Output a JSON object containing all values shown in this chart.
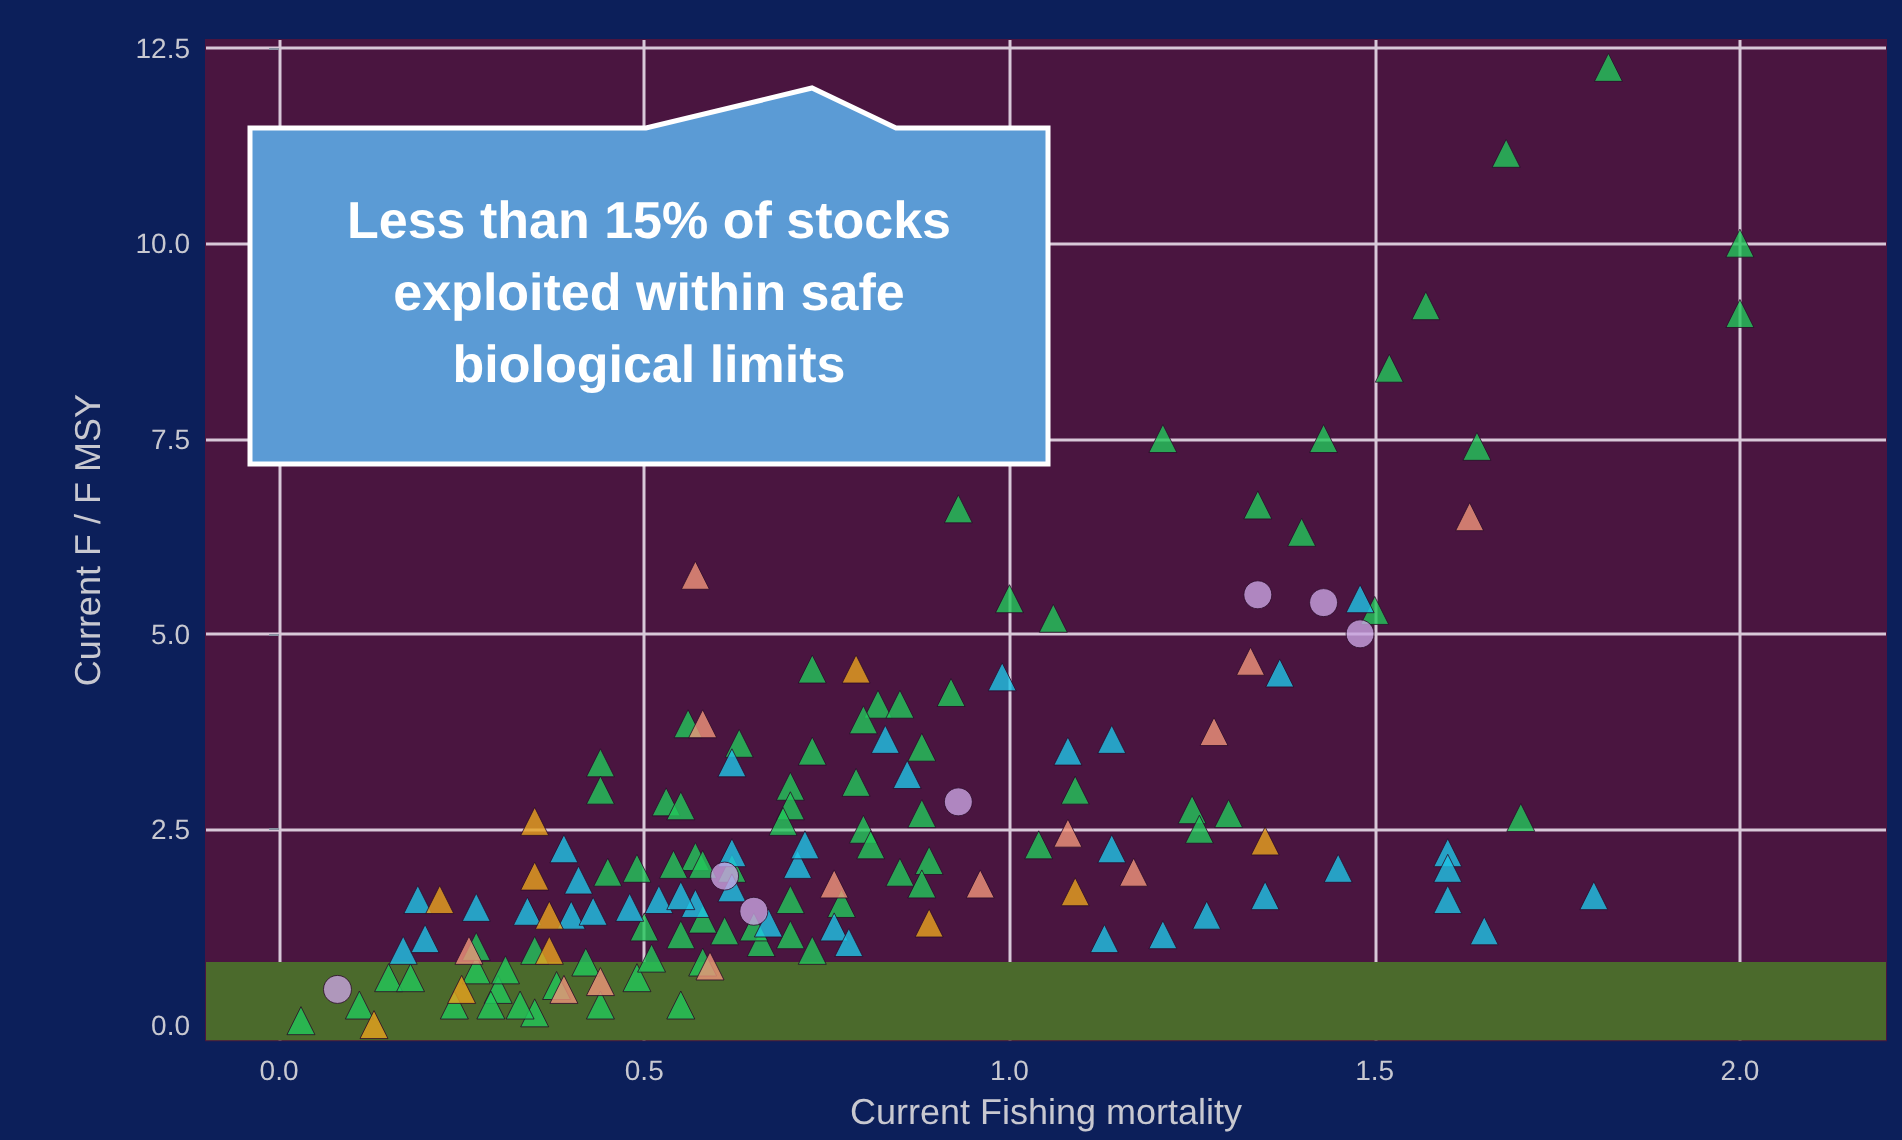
{
  "chart_data": {
    "type": "scatter",
    "xlabel": "Current Fishing mortality",
    "ylabel": "Current F / F MSY",
    "annotations": [
      "Less than 15% of stocks exploited within safe biological limits"
    ],
    "xlim": [
      -0.1,
      2.2
    ],
    "ylim": [
      -0.2,
      12.6
    ],
    "xticks": [
      {
        "value": 0,
        "label": "0.0"
      },
      {
        "value": 0.5,
        "label": "0.5"
      },
      {
        "value": 1,
        "label": "1.0"
      },
      {
        "value": 1.5,
        "label": "1.5"
      },
      {
        "value": 2,
        "label": "2.0"
      }
    ],
    "yticks": [
      {
        "value": 0,
        "label": "0.0"
      },
      {
        "value": 2.5,
        "label": "2.5"
      },
      {
        "value": 5,
        "label": "5.0"
      },
      {
        "value": 7.5,
        "label": "7.5"
      },
      {
        "value": 10,
        "label": "10.0"
      },
      {
        "value": 12.5,
        "label": "12.5"
      }
    ],
    "grid": true,
    "bands": [
      {
        "axis": "y",
        "from": -0.2,
        "to": 0.8,
        "color": "#4b6a2c"
      }
    ],
    "series": [
      {
        "color": "#22c85a",
        "marker": "triangle",
        "x": [
          1.82,
          1.68,
          2.0,
          2.0,
          1.57,
          1.52,
          1.21,
          1.43,
          1.64,
          1.34,
          1.4,
          0.93,
          1.0,
          1.06,
          1.5,
          0.73,
          0.82,
          0.85,
          0.92,
          0.56,
          0.63,
          0.73,
          0.8,
          0.88,
          0.44,
          0.44,
          0.53,
          0.55,
          0.7,
          0.7,
          0.79,
          0.88,
          0.8,
          0.81,
          0.69,
          0.89,
          1.09,
          1.04,
          1.25,
          1.3,
          1.26,
          1.7,
          0.85,
          0.88,
          0.57,
          0.45,
          0.49,
          0.54,
          0.58,
          0.62,
          0.7,
          0.77,
          0.7,
          0.66,
          0.73,
          0.03,
          0.11,
          0.15,
          0.18,
          0.3,
          0.31,
          0.35,
          0.29,
          0.38,
          0.42,
          0.44,
          0.49,
          0.55,
          0.51,
          0.58,
          0.35,
          0.27,
          0.61,
          0.55,
          0.5,
          0.27,
          0.58,
          0.65,
          0.24,
          0.33
        ],
        "values": [
          12.25,
          11.15,
          10.0,
          9.1,
          9.2,
          8.4,
          7.5,
          7.5,
          7.4,
          6.65,
          6.3,
          6.6,
          5.45,
          5.2,
          5.3,
          4.55,
          4.1,
          4.1,
          4.25,
          3.85,
          3.6,
          3.5,
          3.9,
          3.55,
          3.35,
          3.0,
          2.85,
          2.8,
          3.05,
          2.8,
          3.1,
          2.7,
          2.5,
          2.3,
          2.6,
          2.1,
          3.0,
          2.3,
          2.75,
          2.7,
          2.5,
          2.65,
          1.95,
          1.8,
          2.15,
          1.95,
          2.0,
          2.05,
          2.05,
          2.0,
          1.6,
          1.55,
          1.15,
          1.05,
          0.95,
          0.05,
          0.25,
          0.6,
          0.6,
          0.45,
          0.7,
          0.15,
          0.25,
          0.5,
          0.8,
          0.25,
          0.6,
          0.25,
          0.85,
          0.8,
          0.95,
          0.7,
          1.2,
          1.15,
          1.25,
          1.0,
          1.35,
          1.25,
          0.25,
          0.25
        ]
      },
      {
        "color": "#1ec4e6",
        "marker": "triangle",
        "x": [
          0.99,
          1.37,
          1.48,
          1.08,
          1.14,
          1.14,
          1.45,
          1.35,
          1.6,
          1.6,
          1.6,
          1.65,
          1.8,
          1.27,
          1.21,
          1.13,
          0.19,
          0.27,
          0.34,
          0.41,
          0.4,
          0.43,
          0.48,
          0.52,
          0.57,
          0.62,
          0.64,
          0.67,
          0.71,
          0.72,
          0.62,
          0.55,
          0.76,
          0.78,
          0.39,
          0.62,
          0.83,
          0.86,
          0.17,
          0.2
        ],
        "values": [
          4.45,
          4.5,
          5.45,
          3.5,
          3.65,
          2.25,
          2.0,
          1.65,
          2.2,
          2.0,
          1.6,
          1.2,
          1.65,
          1.4,
          1.15,
          1.1,
          1.6,
          1.5,
          1.45,
          1.85,
          1.4,
          1.45,
          1.5,
          1.6,
          1.55,
          1.75,
          null,
          1.3,
          2.05,
          2.3,
          2.2,
          1.65,
          1.25,
          1.05,
          2.25,
          3.35,
          3.65,
          3.2,
          0.95,
          1.1
        ]
      },
      {
        "color": "#f0957a",
        "marker": "triangle",
        "x": [
          0.57,
          0.58,
          1.63,
          1.33,
          1.28,
          1.08,
          1.17,
          0.96,
          0.76,
          0.26,
          0.59,
          0.39,
          0.44
        ],
        "values": [
          5.75,
          3.85,
          6.5,
          4.65,
          3.75,
          2.45,
          1.95,
          1.8,
          1.8,
          0.95,
          0.75,
          0.45,
          0.55
        ]
      },
      {
        "color": "#e8a21e",
        "marker": "triangle",
        "x": [
          0.79,
          0.35,
          0.22,
          0.35,
          0.37,
          0.37,
          0.25,
          0.89,
          1.35,
          1.09,
          0.13
        ],
        "values": [
          4.55,
          2.6,
          1.6,
          1.9,
          1.4,
          0.95,
          0.45,
          1.3,
          2.35,
          1.7,
          0.0
        ]
      },
      {
        "color": "#c8a2e0",
        "marker": "circle",
        "x": [
          1.34,
          1.43,
          1.48,
          0.93,
          0.61,
          0.65,
          0.08
        ],
        "values": [
          5.5,
          5.4,
          5.0,
          2.85,
          1.9,
          1.45,
          0.45
        ]
      }
    ]
  }
}
